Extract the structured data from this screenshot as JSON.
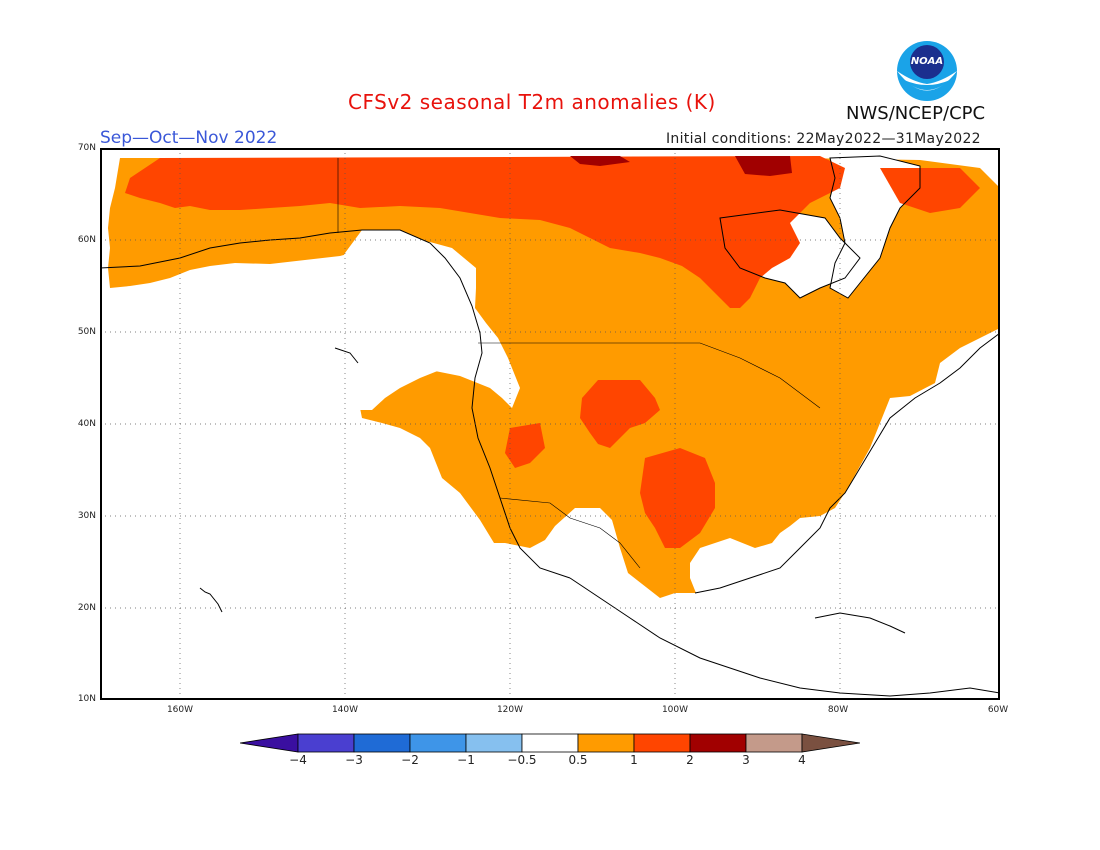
{
  "header": {
    "title": "CFSv2 seasonal T2m anomalies (K)",
    "season": "Sep—Oct—Nov 2022",
    "initial_conditions": "Initial conditions: 22May2022—31May2022",
    "agency": "NWS/NCEP/CPC",
    "logo_text": "NOAA"
  },
  "axes": {
    "lat_labels": [
      "70N",
      "60N",
      "50N",
      "40N",
      "30N",
      "20N",
      "10N"
    ],
    "lon_labels": [
      "160W",
      "140W",
      "120W",
      "100W",
      "80W",
      "60W"
    ]
  },
  "colorbar": {
    "tick_labels": [
      "−4",
      "−3",
      "−2",
      "−1",
      "−0.5",
      "0.5",
      "1",
      "2",
      "3",
      "4"
    ],
    "colors": [
      "#3a0fa0",
      "#4a3fd0",
      "#1f6bd6",
      "#3e95e8",
      "#86c0ef",
      "#ffffff",
      "#ff9b00",
      "#ff4500",
      "#a10000",
      "#c49a8a",
      "#7a5040"
    ]
  },
  "map_colors": {
    "ocean": "#ffffff",
    "anom_0p5_1": "#ff9b00",
    "anom_1_2": "#ff4500",
    "anom_2_3": "#a10000",
    "coast": "#000000"
  }
}
